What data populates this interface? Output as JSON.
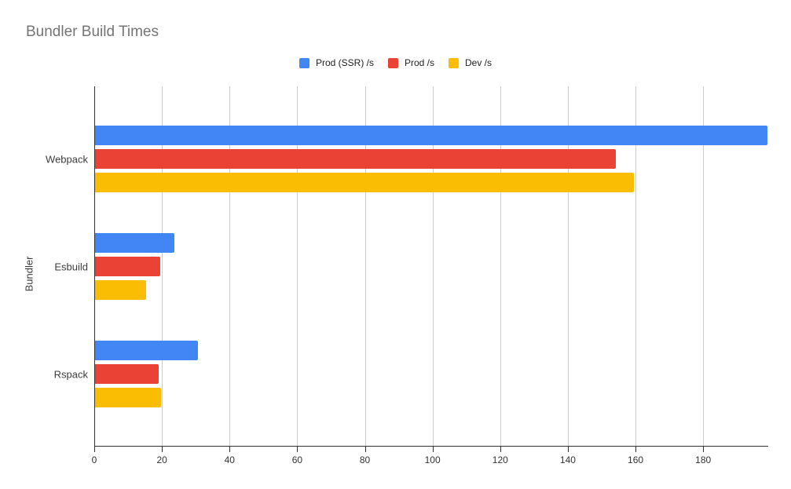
{
  "title": "Bundler Build Times",
  "legend": {
    "items": [
      {
        "label": "Prod (SSR) /s",
        "color": "#4285F4"
      },
      {
        "label": "Prod /s",
        "color": "#EA4335"
      },
      {
        "label": "Dev /s",
        "color": "#FBBC04"
      }
    ]
  },
  "chart_data": {
    "type": "bar",
    "orientation": "horizontal",
    "title": "Bundler Build Times",
    "categories": [
      "Webpack",
      "Esbuild",
      "Rspack"
    ],
    "series": [
      {
        "name": "Prod (SSR) /s",
        "color": "#4285F4",
        "values": [
          199.0,
          23.6,
          30.6
        ]
      },
      {
        "name": "Prod /s",
        "color": "#EA4335",
        "values": [
          154.3,
          19.4,
          19.1
        ]
      },
      {
        "name": "Dev /s",
        "color": "#FBBC04",
        "values": [
          159.5,
          15.3,
          19.8
        ]
      }
    ],
    "xlabel": "",
    "ylabel": "Bundler",
    "xlim": [
      0,
      199
    ],
    "x_ticks": [
      0,
      20,
      40,
      60,
      80,
      100,
      120,
      140,
      160,
      180
    ],
    "grid": true,
    "legend_position": "top",
    "background": "#ffffff"
  }
}
